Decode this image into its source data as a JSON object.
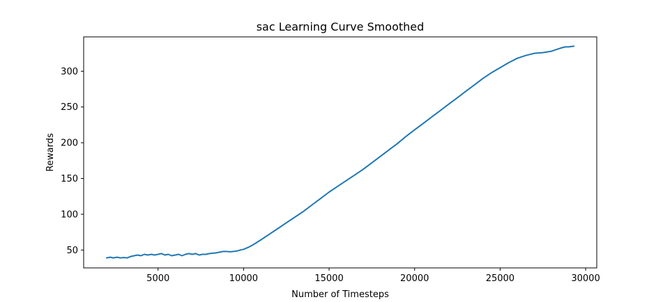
{
  "chart_data": {
    "type": "line",
    "title": "sac Learning Curve Smoothed",
    "xlabel": "Number of Timesteps",
    "ylabel": "Rewards",
    "xlim": [
      650,
      30650
    ],
    "ylim": [
      25,
      348
    ],
    "xticks": [
      {
        "value": 5000,
        "label": "5000"
      },
      {
        "value": 10000,
        "label": "10000"
      },
      {
        "value": 15000,
        "label": "15000"
      },
      {
        "value": 20000,
        "label": "20000"
      },
      {
        "value": 25000,
        "label": "25000"
      },
      {
        "value": 30000,
        "label": "30000"
      }
    ],
    "yticks": [
      {
        "value": 50,
        "label": "50"
      },
      {
        "value": 100,
        "label": "100"
      },
      {
        "value": 150,
        "label": "150"
      },
      {
        "value": 200,
        "label": "200"
      },
      {
        "value": 250,
        "label": "250"
      },
      {
        "value": 300,
        "label": "300"
      }
    ],
    "grid": false,
    "series": [
      {
        "color": "#1f77b4",
        "x": [
          2000,
          2200,
          2400,
          2600,
          2800,
          3000,
          3200,
          3400,
          3600,
          3800,
          4000,
          4200,
          4400,
          4600,
          4800,
          5000,
          5200,
          5400,
          5600,
          5800,
          6000,
          6200,
          6400,
          6600,
          6800,
          7000,
          7200,
          7400,
          7600,
          7800,
          8000,
          8200,
          8400,
          8600,
          8800,
          9000,
          9200,
          9400,
          9600,
          9800,
          10000,
          10300,
          10600,
          11000,
          11500,
          12000,
          12500,
          13000,
          13500,
          14000,
          14500,
          15000,
          15500,
          16000,
          16500,
          17000,
          17500,
          18000,
          18500,
          19000,
          19500,
          20000,
          20500,
          21000,
          21500,
          22000,
          22500,
          23000,
          23500,
          24000,
          24500,
          25000,
          25500,
          26000,
          26500,
          27000,
          27500,
          28000,
          28500,
          28800,
          29000,
          29300
        ],
        "y": [
          39,
          40,
          39,
          40,
          39,
          39.5,
          39,
          41,
          42,
          43,
          42,
          44,
          43,
          44,
          43,
          44,
          45,
          43,
          44,
          42,
          43,
          44,
          42,
          44,
          45,
          44,
          45,
          43,
          44,
          44,
          45,
          45.5,
          46,
          47,
          48,
          48,
          47.5,
          48,
          48.5,
          50,
          51,
          54,
          58,
          64,
          72,
          80,
          88,
          96,
          104,
          113,
          122,
          131,
          139,
          147,
          155,
          163,
          172,
          181,
          190,
          199,
          209,
          218,
          227,
          236,
          245,
          254,
          263,
          272,
          281,
          290,
          298,
          305,
          312,
          318,
          322,
          325,
          326,
          328,
          332,
          334,
          334,
          335
        ]
      }
    ]
  }
}
